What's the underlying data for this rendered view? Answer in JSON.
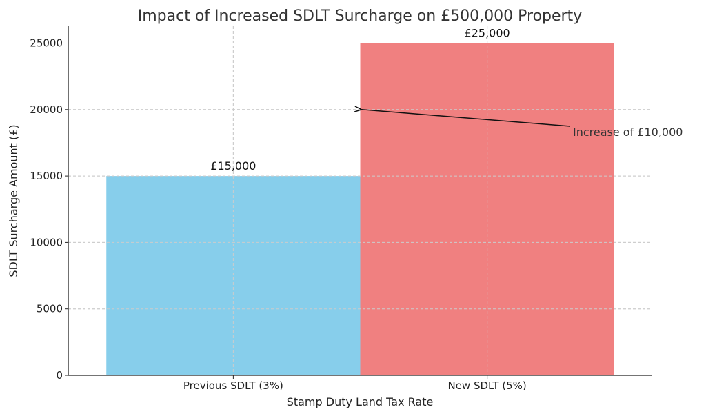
{
  "chart_data": {
    "type": "bar",
    "title": "Impact of Increased SDLT Surcharge on £500,000 Property",
    "xlabel": "Stamp Duty Land Tax Rate",
    "ylabel": "SDLT Surcharge Amount (£)",
    "categories": [
      "Previous SDLT (3%)",
      "New SDLT (5%)"
    ],
    "values": [
      15000,
      25000
    ],
    "data_labels": [
      "£15,000",
      "£25,000"
    ],
    "colors": [
      "#87CEEB",
      "#F08080"
    ],
    "ylim": [
      0,
      26000
    ],
    "yticks": [
      0,
      5000,
      10000,
      15000,
      20000,
      25000
    ],
    "grid": true,
    "annotation": {
      "text": "Increase of £10,000",
      "arrow_to": {
        "category_position": 1.0,
        "y": 20000
      }
    }
  }
}
